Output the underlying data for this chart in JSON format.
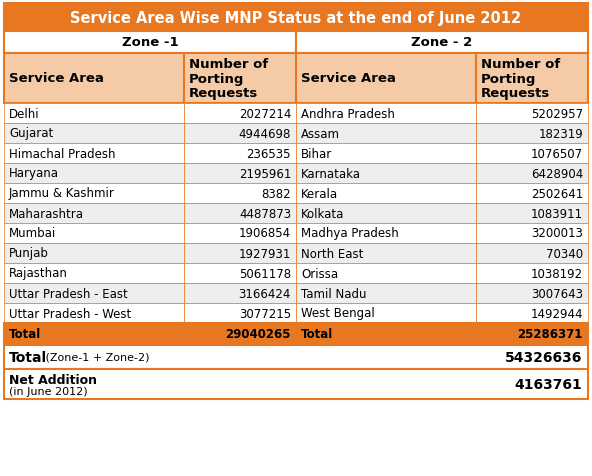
{
  "title": "Service Area Wise MNP Status at the end of June 2012",
  "title_bg": "#E87722",
  "title_color": "#FFFFFF",
  "zone1_label": "Zone -1",
  "zone2_label": "Zone - 2",
  "col_header1": "Service Area",
  "col_header2": "Number of\nPorting\nRequests",
  "zone1_data": [
    [
      "Delhi",
      "2027214"
    ],
    [
      "Gujarat",
      "4944698"
    ],
    [
      "Himachal Pradesh",
      "236535"
    ],
    [
      "Haryana",
      "2195961"
    ],
    [
      "Jammu & Kashmir",
      "8382"
    ],
    [
      "Maharashtra",
      "4487873"
    ],
    [
      "Mumbai",
      "1906854"
    ],
    [
      "Punjab",
      "1927931"
    ],
    [
      "Rajasthan",
      "5061178"
    ],
    [
      "Uttar Pradesh - East",
      "3166424"
    ],
    [
      "Uttar Pradesh - West",
      "3077215"
    ]
  ],
  "zone2_data": [
    [
      "Andhra Pradesh",
      "5202957"
    ],
    [
      "Assam",
      "182319"
    ],
    [
      "Bihar",
      "1076507"
    ],
    [
      "Karnataka",
      "6428904"
    ],
    [
      "Kerala",
      "2502641"
    ],
    [
      "Kolkata",
      "1083911"
    ],
    [
      "Madhya Pradesh",
      "3200013"
    ],
    [
      "North East",
      "70340"
    ],
    [
      "Orissa",
      "1038192"
    ],
    [
      "Tamil Nadu",
      "3007643"
    ],
    [
      "West Bengal",
      "1492944"
    ]
  ],
  "zone1_total": "29040265",
  "zone2_total": "25286371",
  "grand_total": "54326636",
  "net_addition": "4163761",
  "header_bg": "#F5CBA7",
  "zone_header_bg": "#FFFFFF",
  "row_odd_bg": "#FFFFFF",
  "row_even_bg": "#EEEEEE",
  "total_row_bg": "#E87722",
  "grand_total_bg": "#FFFFFF",
  "net_addition_bg": "#FFFFFF",
  "border_color": "#E87722",
  "text_color": "#000000",
  "font_size": 8.5,
  "header_font_size": 9.5,
  "title_fontsize": 10.5,
  "zone_fontsize": 9.5
}
